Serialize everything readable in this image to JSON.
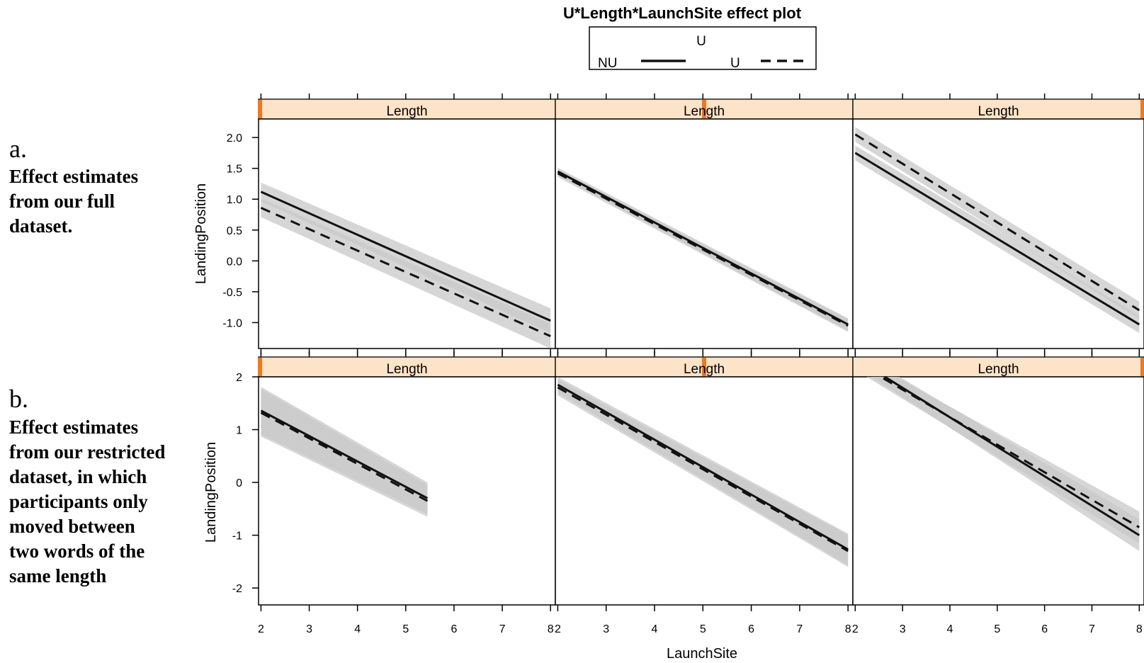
{
  "figure": {
    "title": "U*Length*LaunchSite effect plot",
    "legend": {
      "title": "U",
      "entries": [
        {
          "label": "NU",
          "style": "solid"
        },
        {
          "label": "U",
          "style": "dashed"
        }
      ]
    },
    "strip_label": "Length",
    "xlabel": "LaunchSite",
    "ylabel": "LandingPosition"
  },
  "captions": [
    {
      "letter": "a.",
      "lines": [
        "Effect estimates",
        "from our full",
        "dataset."
      ]
    },
    {
      "letter": "b.",
      "lines": [
        "Effect estimates",
        "from our restricted",
        "dataset, in which",
        "participants only",
        "moved between",
        "two words of the",
        "same length"
      ]
    }
  ],
  "colors": {
    "strip_bg": "#fde3c8",
    "strip_marker": "#f07820",
    "band": "#c8c8c8",
    "line": "#111111",
    "frame": "#000000"
  },
  "chart_data": [
    {
      "type": "line",
      "row": "a",
      "x_ticks": [
        2,
        3,
        4,
        5,
        6,
        7,
        8
      ],
      "y_ticks": [
        2.0,
        1.5,
        1.0,
        0.5,
        0.0,
        -0.5,
        -1.0
      ],
      "y_tick_labels": [
        "2.0",
        "1.5",
        "1.0",
        "0.5",
        "0.0",
        "-0.5",
        "-1.0"
      ],
      "xlim": [
        1.95,
        8.1
      ],
      "ylim": [
        -1.42,
        2.3
      ],
      "panels": [
        {
          "strip_level": 1,
          "series": [
            {
              "name": "NU",
              "x": [
                2,
                8
              ],
              "y": [
                1.12,
                -0.97
              ],
              "band": [
                0.15,
                0.2
              ]
            },
            {
              "name": "U",
              "x": [
                2,
                8
              ],
              "y": [
                0.86,
                -1.22
              ],
              "band": [
                0.15,
                0.2
              ]
            }
          ]
        },
        {
          "strip_level": 2,
          "series": [
            {
              "name": "NU",
              "x": [
                2,
                8
              ],
              "y": [
                1.45,
                -1.03
              ],
              "band": [
                0.06,
                0.1
              ]
            },
            {
              "name": "U",
              "x": [
                2,
                8
              ],
              "y": [
                1.42,
                -1.05
              ],
              "band": [
                0.06,
                0.1
              ]
            }
          ]
        },
        {
          "strip_level": 3,
          "series": [
            {
              "name": "NU",
              "x": [
                2,
                8
              ],
              "y": [
                1.75,
                -1.03
              ],
              "band": [
                0.12,
                0.14
              ]
            },
            {
              "name": "U",
              "x": [
                2,
                8
              ],
              "y": [
                2.05,
                -0.8
              ],
              "band": [
                0.12,
                0.14
              ]
            }
          ]
        }
      ]
    },
    {
      "type": "line",
      "row": "b",
      "x_ticks": [
        2,
        3,
        4,
        5,
        6,
        7,
        8
      ],
      "y_ticks": [
        2,
        1,
        0,
        -1,
        -2
      ],
      "y_tick_labels": [
        "2",
        "1",
        "0",
        "-1",
        "-2"
      ],
      "xlim": [
        1.95,
        8.1
      ],
      "ylim": [
        -2.32,
        2.0
      ],
      "panels": [
        {
          "strip_level": 1,
          "series": [
            {
              "name": "NU",
              "x": [
                2,
                5.45
              ],
              "y": [
                1.36,
                -0.3
              ],
              "band": [
                0.45,
                0.3
              ]
            },
            {
              "name": "U",
              "x": [
                2,
                5.45
              ],
              "y": [
                1.32,
                -0.35
              ],
              "band": [
                0.45,
                0.3
              ]
            }
          ]
        },
        {
          "strip_level": 2,
          "series": [
            {
              "name": "NU",
              "x": [
                2,
                8
              ],
              "y": [
                1.85,
                -1.27
              ],
              "band": [
                0.15,
                0.3
              ]
            },
            {
              "name": "U",
              "x": [
                2,
                8
              ],
              "y": [
                1.8,
                -1.3
              ],
              "band": [
                0.15,
                0.3
              ]
            }
          ]
        },
        {
          "strip_level": 3,
          "series": [
            {
              "name": "NU",
              "x": [
                2,
                8
              ],
              "y": [
                2.35,
                -1.0
              ],
              "band": [
                0.15,
                0.3
              ]
            },
            {
              "name": "U",
              "x": [
                2,
                8
              ],
              "y": [
                2.28,
                -0.85
              ],
              "band": [
                0.15,
                0.3
              ]
            }
          ]
        }
      ]
    }
  ]
}
